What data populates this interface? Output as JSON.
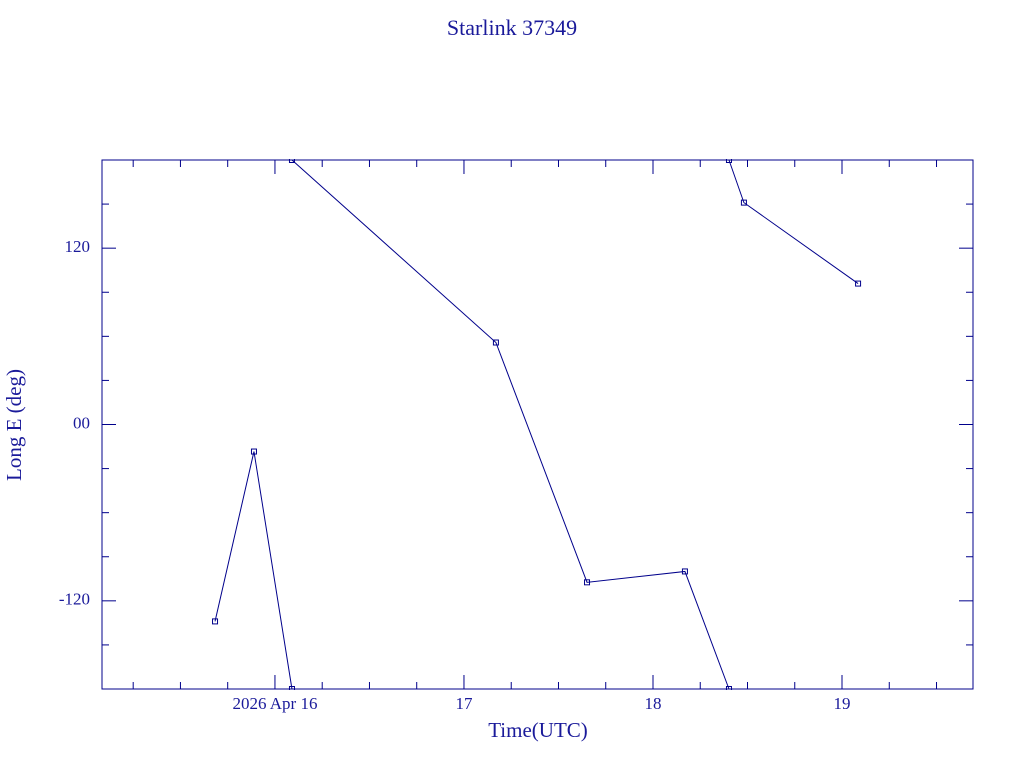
{
  "chart_data": {
    "type": "line",
    "title": "Starlink 37349",
    "xlabel": "Time(UTC)",
    "ylabel": "Long E (deg)",
    "x": [
      15.683,
      15.889,
      16.09,
      null,
      16.09,
      17.169,
      17.651,
      18.169,
      18.402,
      null,
      18.402,
      18.481,
      19.085
    ],
    "series": [
      {
        "color": "#00008b",
        "values": [
          -134,
          -18.4,
          -180,
          null,
          180,
          55.8,
          -107.4,
          -100,
          -180,
          null,
          180,
          151,
          95.9
        ]
      }
    ],
    "xlim": [
      15.085,
      19.693
    ],
    "xticks": [
      {
        "value": 16,
        "label": "2026 Apr 16"
      },
      17,
      18,
      19
    ],
    "xminor": [
      15.25,
      15.5,
      15.75,
      16.25,
      16.5,
      16.75,
      17.25,
      17.5,
      17.75,
      18.25,
      18.5,
      18.75,
      19.25,
      19.5
    ],
    "ylim": [
      -180,
      180
    ],
    "yticks": [
      -120,
      {
        "value": 0,
        "label": "00"
      },
      120
    ],
    "yminor": [
      -150,
      -90,
      -60,
      -30,
      30,
      60,
      90,
      150
    ]
  }
}
